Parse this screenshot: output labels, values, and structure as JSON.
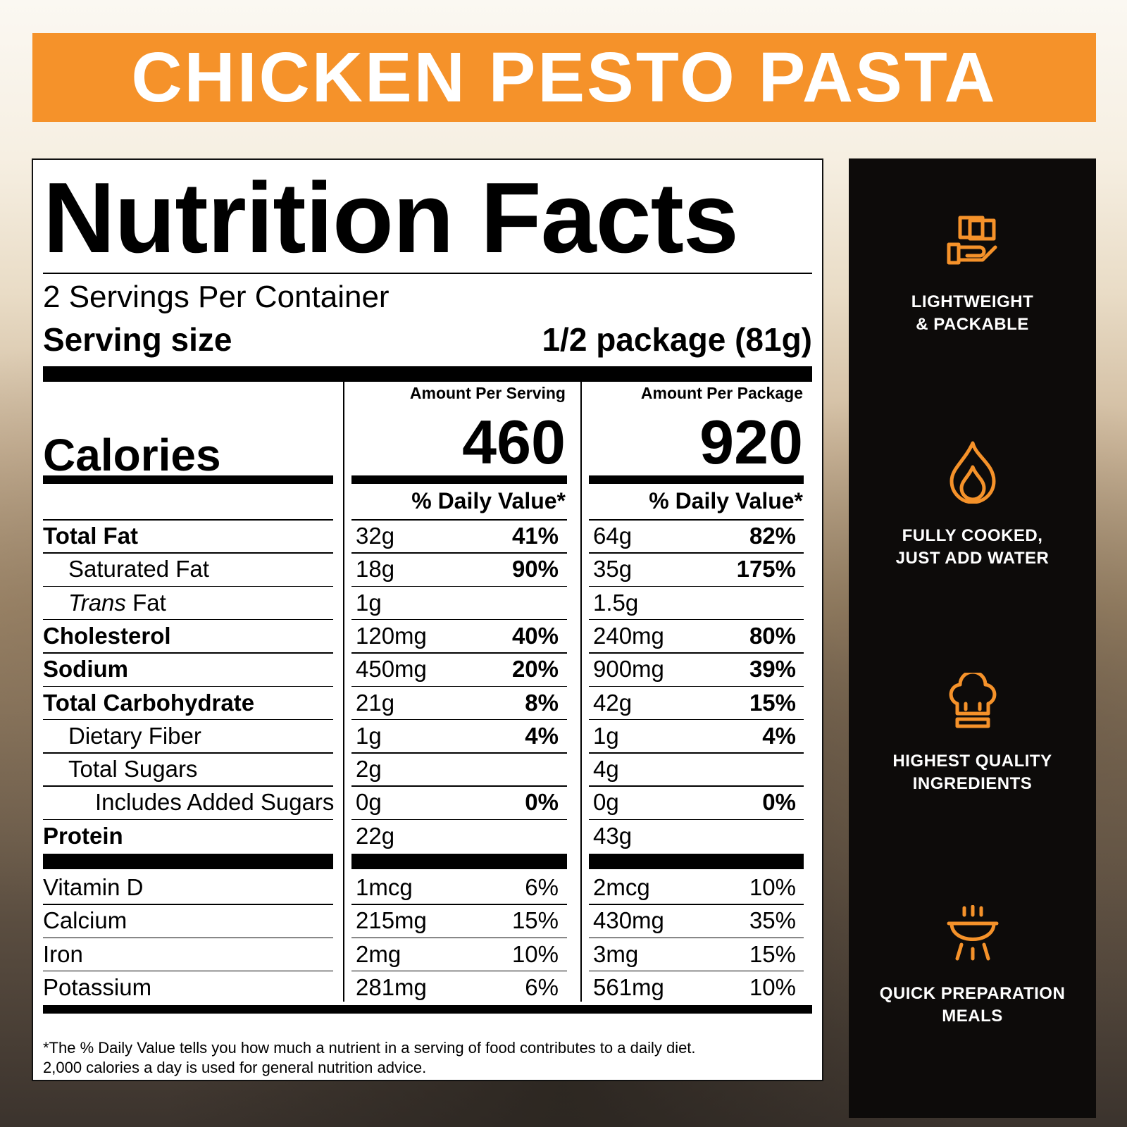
{
  "banner": {
    "title": "CHICKEN PESTO PASTA"
  },
  "label": {
    "title": "Nutrition Facts",
    "servings_per_container": "2 Servings Per Container",
    "serving_size_label": "Serving size",
    "serving_size_value": "1/2 package (81g)",
    "col_serving": "Amount Per Serving",
    "col_package": "Amount Per Package",
    "calories_label": "Calories",
    "calories_serving": "460",
    "calories_package": "920",
    "dv_header": "% Daily Value*",
    "nutrients": [
      {
        "label": "Total Fat",
        "s_amt": "32g",
        "s_pct": "41%",
        "p_amt": "64g",
        "p_pct": "82%"
      },
      {
        "label": "Saturated Fat",
        "s_amt": "18g",
        "s_pct": "90%",
        "p_amt": "35g",
        "p_pct": "175%"
      },
      {
        "label_italic": "Trans",
        "label": " Fat",
        "s_amt": "1g",
        "s_pct": "",
        "p_amt": "1.5g",
        "p_pct": ""
      },
      {
        "label": "Cholesterol",
        "s_amt": "120mg",
        "s_pct": "40%",
        "p_amt": "240mg",
        "p_pct": "80%"
      },
      {
        "label": "Sodium",
        "s_amt": "450mg",
        "s_pct": "20%",
        "p_amt": "900mg",
        "p_pct": "39%"
      },
      {
        "label": "Total Carbohydrate",
        "s_amt": "21g",
        "s_pct": "8%",
        "p_amt": "42g",
        "p_pct": "15%"
      },
      {
        "label": "Dietary Fiber",
        "s_amt": "1g",
        "s_pct": "4%",
        "p_amt": "1g",
        "p_pct": "4%"
      },
      {
        "label": "Total Sugars",
        "s_amt": "2g",
        "s_pct": "",
        "p_amt": "4g",
        "p_pct": ""
      },
      {
        "label": "Includes Added Sugars",
        "s_amt": "0g",
        "s_pct": "0%",
        "p_amt": "0g",
        "p_pct": "0%"
      },
      {
        "label": "Protein",
        "s_amt": "22g",
        "s_pct": "",
        "p_amt": "43g",
        "p_pct": ""
      }
    ],
    "vitamins": [
      {
        "label": "Vitamin D",
        "s_amt": "1mcg",
        "s_pct": "6%",
        "p_amt": "2mcg",
        "p_pct": "10%"
      },
      {
        "label": "Calcium",
        "s_amt": "215mg",
        "s_pct": "15%",
        "p_amt": "430mg",
        "p_pct": "35%"
      },
      {
        "label": "Iron",
        "s_amt": "2mg",
        "s_pct": "10%",
        "p_amt": "3mg",
        "p_pct": "15%"
      },
      {
        "label": "Potassium",
        "s_amt": "281mg",
        "s_pct": "6%",
        "p_amt": "561mg",
        "p_pct": "10%"
      }
    ],
    "footnote_1": "*The % Daily Value tells you how much a nutrient in a serving of food contributes to a daily diet.",
    "footnote_2": "2,000 calories a day is used for general nutrition advice."
  },
  "features": [
    {
      "icon": "package-hand-icon",
      "line1": "LIGHTWEIGHT",
      "line2": "& PACKABLE"
    },
    {
      "icon": "flame-icon",
      "line1": "FULLY COOKED,",
      "line2": "JUST ADD WATER"
    },
    {
      "icon": "chef-hat-icon",
      "line1": "HIGHEST QUALITY",
      "line2": "INGREDIENTS"
    },
    {
      "icon": "cooking-pot-icon",
      "line1": "QUICK PREPARATION",
      "line2": "MEALS"
    }
  ],
  "colors": {
    "accent": "#f5922a",
    "side_bg": "#0d0b0a"
  }
}
